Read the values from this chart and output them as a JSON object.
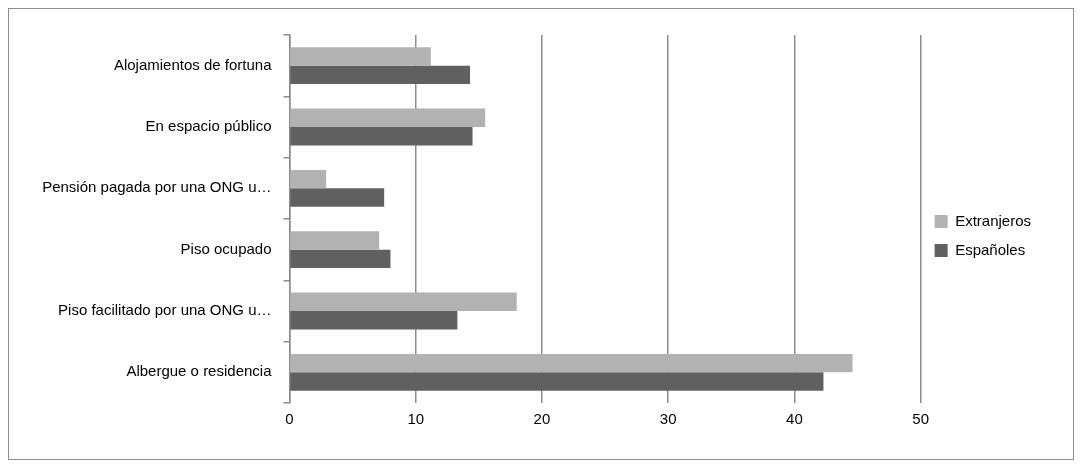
{
  "chart_data": {
    "type": "bar",
    "orientation": "horizontal",
    "categories": [
      "Alojamientos de fortuna",
      "En espacio público",
      "Pensión pagada por una ONG u…",
      "Piso ocupado",
      "Piso facilitado por una ONG u…",
      "Albergue o residencia"
    ],
    "series": [
      {
        "name": "Extranjeros",
        "color": "#b2b2b2",
        "values": [
          11.2,
          15.5,
          2.9,
          7.1,
          18.0,
          44.6
        ]
      },
      {
        "name": "Españoles",
        "color": "#606060",
        "values": [
          14.3,
          14.5,
          7.5,
          8.0,
          13.3,
          42.3
        ]
      }
    ],
    "xlim": [
      0,
      50
    ],
    "xticks": [
      0,
      10,
      20,
      30,
      40,
      50
    ],
    "grid": "x",
    "legend": "right"
  }
}
